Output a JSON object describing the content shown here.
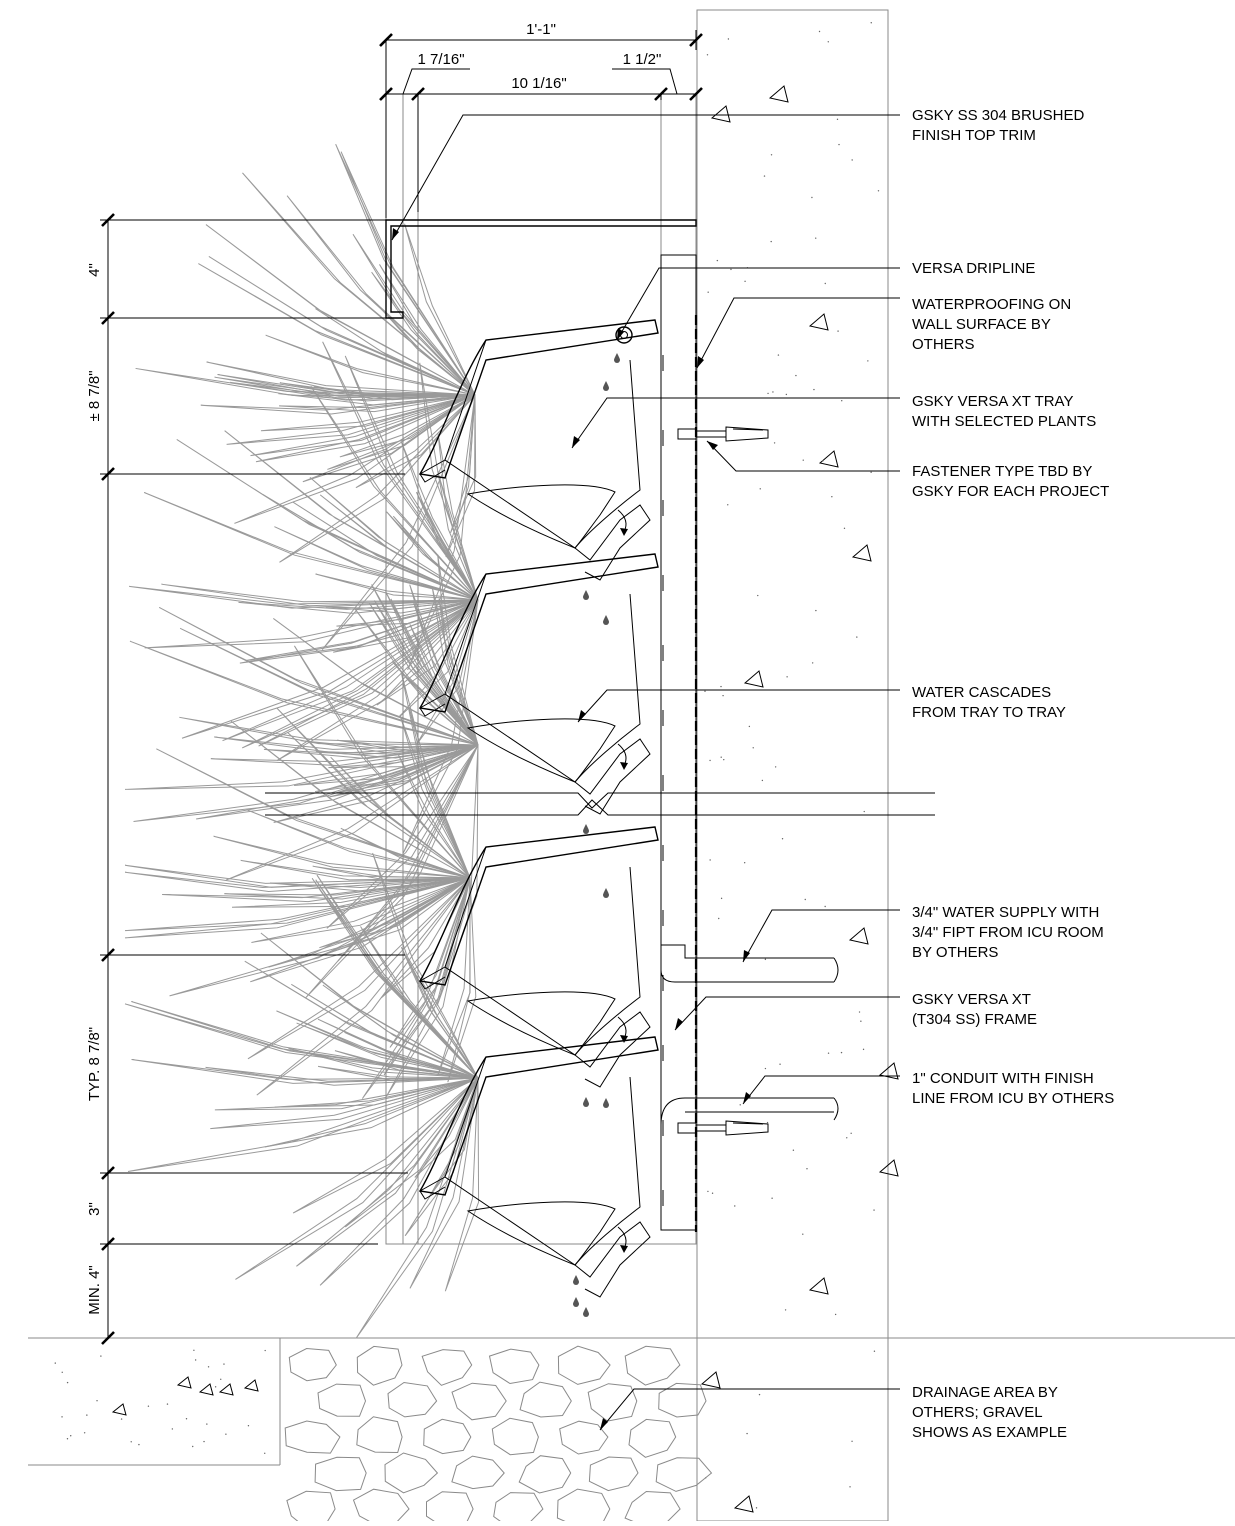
{
  "dimensions": {
    "overall_width": "1'-1\"",
    "left_offset": "1 7/16\"",
    "tray_width": "10 1/16\"",
    "right_offset": "1 1/2\"",
    "trim_height": "4\"",
    "first_tray": "± 8 7/8\"",
    "typical_tray": "TYP. 8 7/8\"",
    "bottom_gap": "3\"",
    "min_clearance": "MIN. 4\""
  },
  "callouts": [
    {
      "lines": [
        "GSKY SS 304 BRUSHED",
        "FINISH TOP TRIM"
      ]
    },
    {
      "lines": [
        "VERSA DRIPLINE"
      ]
    },
    {
      "lines": [
        "WATERPROOFING ON",
        "WALL SURFACE BY",
        "OTHERS"
      ]
    },
    {
      "lines": [
        "GSKY VERSA XT TRAY",
        "WITH SELECTED PLANTS"
      ]
    },
    {
      "lines": [
        "FASTENER TYPE TBD BY",
        "GSKY FOR EACH PROJECT"
      ]
    },
    {
      "lines": [
        "WATER CASCADES",
        "FROM TRAY TO TRAY"
      ]
    },
    {
      "lines": [
        "3/4\" WATER SUPPLY WITH",
        "3/4\" FIPT FROM ICU ROOM",
        "BY OTHERS"
      ]
    },
    {
      "lines": [
        "GSKY VERSA XT",
        "(T304 SS)  FRAME"
      ]
    },
    {
      "lines": [
        "1\" CONDUIT WITH FINISH",
        "LINE FROM ICU BY OTHERS"
      ]
    },
    {
      "lines": [
        "DRAINAGE AREA BY",
        "OTHERS; GRAVEL",
        "SHOWS AS EXAMPLE"
      ]
    }
  ]
}
